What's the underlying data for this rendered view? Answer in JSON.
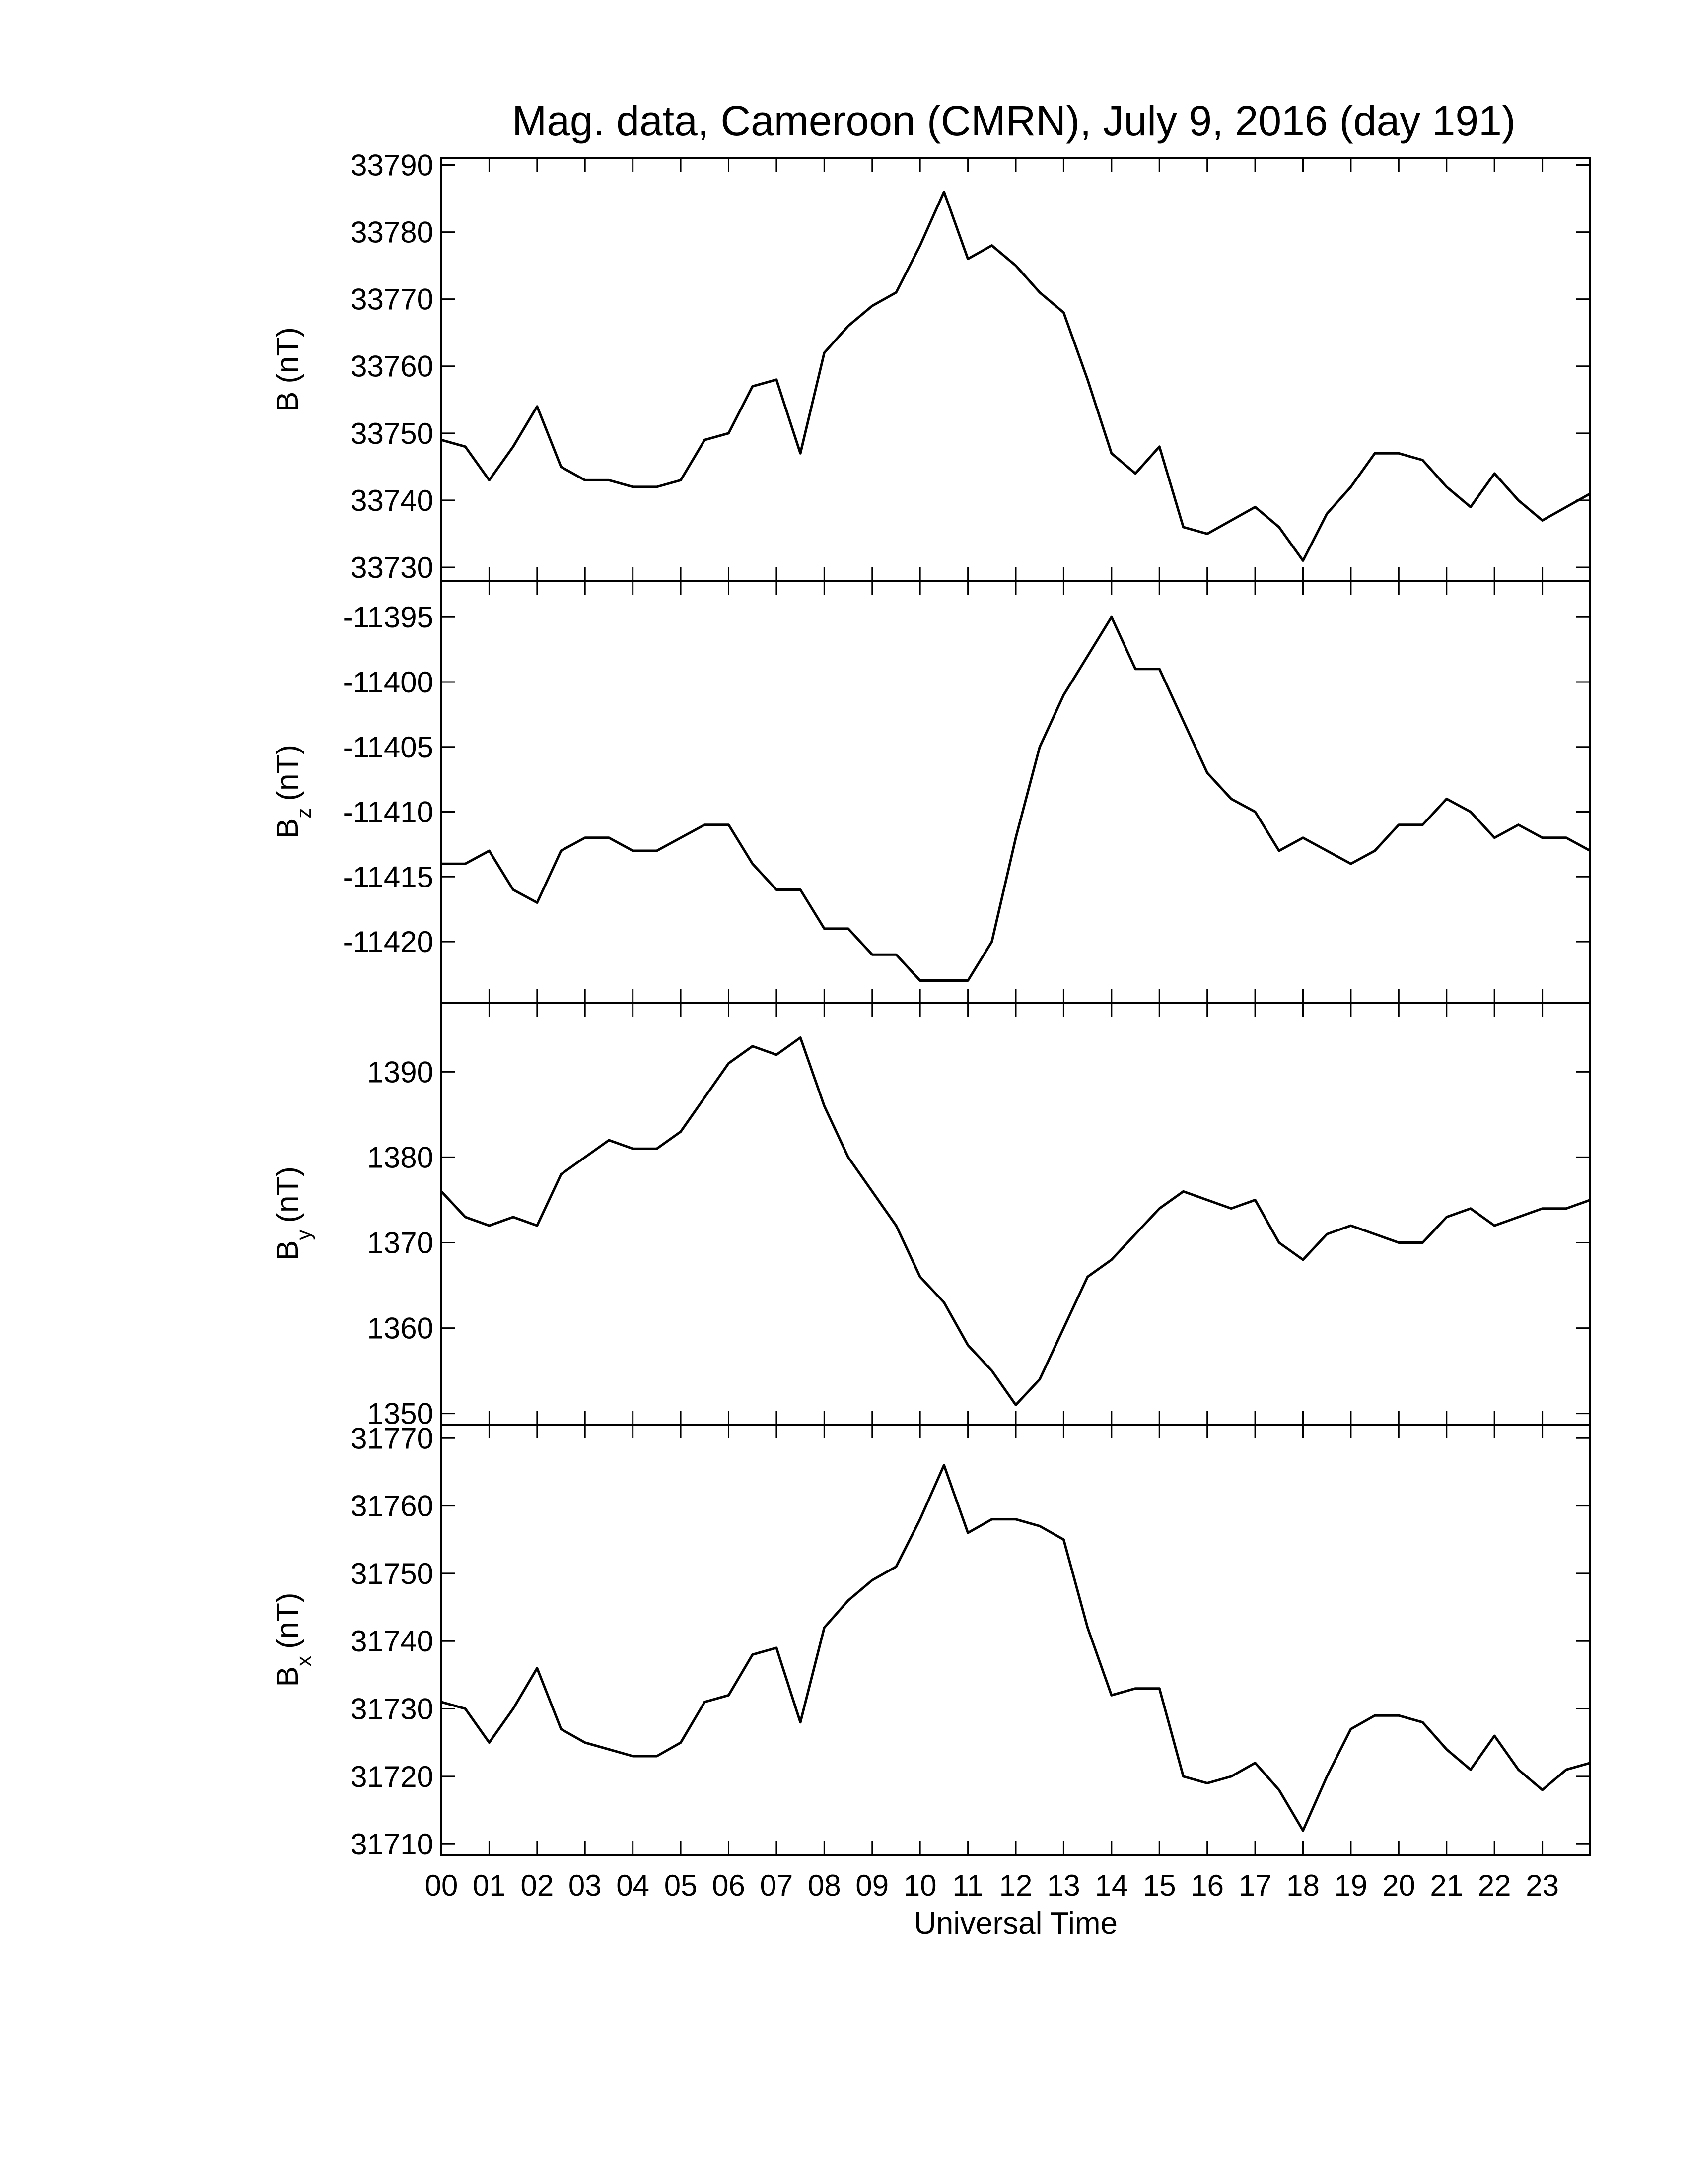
{
  "chart_data": [
    {
      "type": "line",
      "title": "Mag. data, Cameroon (CMRN), July 9, 2016 (day 191)",
      "ylabel": {
        "symbol": "B",
        "unit": "(nT)"
      },
      "x": [
        0,
        0.5,
        1,
        1.5,
        2,
        2.5,
        3,
        3.5,
        4,
        4.5,
        5,
        5.5,
        6,
        6.5,
        7,
        7.5,
        8,
        8.5,
        9,
        9.5,
        10,
        10.5,
        11,
        11.5,
        12,
        12.5,
        13,
        13.5,
        14,
        14.5,
        15,
        15.5,
        16,
        16.5,
        17,
        17.5,
        18,
        18.5,
        19,
        19.5,
        20,
        20.5,
        21,
        21.5,
        22,
        22.5,
        23,
        23.5,
        24
      ],
      "values": [
        33749,
        33748,
        33743,
        33748,
        33754,
        33745,
        33743,
        33743,
        33742,
        33742,
        33743,
        33749,
        33750,
        33757,
        33758,
        33747,
        33762,
        33766,
        33769,
        33771,
        33778,
        33786,
        33776,
        33778,
        33775,
        33771,
        33768,
        33758,
        33747,
        33744,
        33748,
        33736,
        33735,
        33737,
        33739,
        33736,
        33731,
        33738,
        33742,
        33747,
        33747,
        33746,
        33742,
        33739,
        33744,
        33740,
        33737,
        33739,
        33741
      ],
      "color": "#000000",
      "xlim": [
        0,
        24
      ],
      "ylim": [
        33728,
        33791
      ],
      "yticks": [
        33730,
        33740,
        33750,
        33760,
        33770,
        33780,
        33790
      ]
    },
    {
      "type": "line",
      "ylabel": {
        "symbol": "B",
        "subscript": "z",
        "unit": "(nT)"
      },
      "x": [
        0,
        0.5,
        1,
        1.5,
        2,
        2.5,
        3,
        3.5,
        4,
        4.5,
        5,
        5.5,
        6,
        6.5,
        7,
        7.5,
        8,
        8.5,
        9,
        9.5,
        10,
        10.5,
        11,
        11.5,
        12,
        12.5,
        13,
        13.5,
        14,
        14.5,
        15,
        15.5,
        16,
        16.5,
        17,
        17.5,
        18,
        18.5,
        19,
        19.5,
        20,
        20.5,
        21,
        21.5,
        22,
        22.5,
        23,
        23.5,
        24
      ],
      "values": [
        -11414,
        -11414,
        -11413,
        -11416,
        -11417,
        -11413,
        -11412,
        -11412,
        -11413,
        -11413,
        -11412,
        -11411,
        -11411,
        -11414,
        -11416,
        -11416,
        -11419,
        -11419,
        -11421,
        -11421,
        -11423,
        -11423,
        -11423,
        -11420,
        -11412,
        -11405,
        -11401,
        -11398,
        -11395,
        -11399,
        -11399,
        -11403,
        -11407,
        -11409,
        -11410,
        -11413,
        -11412,
        -11413,
        -11414,
        -11413,
        -11411,
        -11411,
        -11409,
        -11410,
        -11412,
        -11411,
        -11412,
        -11412,
        -11413
      ],
      "color": "#000000",
      "xlim": [
        0,
        24
      ],
      "ylim": [
        -11424.7,
        -11392.2
      ],
      "yticks": [
        -11420,
        -11415,
        -11410,
        -11405,
        -11400,
        -11395
      ]
    },
    {
      "type": "line",
      "ylabel": {
        "symbol": "B",
        "subscript": "y",
        "unit": "(nT)"
      },
      "x": [
        0,
        0.5,
        1,
        1.5,
        2,
        2.5,
        3,
        3.5,
        4,
        4.5,
        5,
        5.5,
        6,
        6.5,
        7,
        7.5,
        8,
        8.5,
        9,
        9.5,
        10,
        10.5,
        11,
        11.5,
        12,
        12.5,
        13,
        13.5,
        14,
        14.5,
        15,
        15.5,
        16,
        16.5,
        17,
        17.5,
        18,
        18.5,
        19,
        19.5,
        20,
        20.5,
        21,
        21.5,
        22,
        22.5,
        23,
        23.5,
        24
      ],
      "values": [
        1376,
        1373,
        1372,
        1373,
        1372,
        1378,
        1380,
        1382,
        1381,
        1381,
        1383,
        1387,
        1391,
        1393,
        1392,
        1394,
        1386,
        1380,
        1376,
        1372,
        1366,
        1363,
        1358,
        1355,
        1351,
        1354,
        1360,
        1366,
        1368,
        1371,
        1374,
        1376,
        1375,
        1374,
        1375,
        1370,
        1368,
        1371,
        1372,
        1371,
        1370,
        1370,
        1373,
        1374,
        1372,
        1373,
        1374,
        1374,
        1375
      ],
      "color": "#000000",
      "xlim": [
        0,
        24
      ],
      "ylim": [
        1348.7,
        1398.1
      ],
      "yticks": [
        1350,
        1360,
        1370,
        1380,
        1390
      ]
    },
    {
      "type": "line",
      "xlabel": "Universal Time",
      "ylabel": {
        "symbol": "B",
        "subscript": "x",
        "unit": "(nT)"
      },
      "x": [
        0,
        0.5,
        1,
        1.5,
        2,
        2.5,
        3,
        3.5,
        4,
        4.5,
        5,
        5.5,
        6,
        6.5,
        7,
        7.5,
        8,
        8.5,
        9,
        9.5,
        10,
        10.5,
        11,
        11.5,
        12,
        12.5,
        13,
        13.5,
        14,
        14.5,
        15,
        15.5,
        16,
        16.5,
        17,
        17.5,
        18,
        18.5,
        19,
        19.5,
        20,
        20.5,
        21,
        21.5,
        22,
        22.5,
        23,
        23.5,
        24
      ],
      "values": [
        31731,
        31730,
        31725,
        31730,
        31736,
        31727,
        31725,
        31724,
        31723,
        31723,
        31725,
        31731,
        31732,
        31738,
        31739,
        31728,
        31742,
        31746,
        31749,
        31751,
        31758,
        31766,
        31756,
        31758,
        31758,
        31757,
        31755,
        31742,
        31732,
        31733,
        31733,
        31720,
        31719,
        31720,
        31722,
        31718,
        31712,
        31720,
        31727,
        31729,
        31729,
        31728,
        31724,
        31721,
        31726,
        31721,
        31718,
        31721,
        31722
      ],
      "color": "#000000",
      "xlim": [
        0,
        24
      ],
      "ylim": [
        31708.4,
        31772
      ],
      "yticks": [
        31710,
        31720,
        31730,
        31740,
        31750,
        31760,
        31770
      ],
      "xticks": [
        {
          "value": 0,
          "label": "00"
        },
        {
          "value": 1,
          "label": "01"
        },
        {
          "value": 2,
          "label": "02"
        },
        {
          "value": 3,
          "label": "03"
        },
        {
          "value": 4,
          "label": "04"
        },
        {
          "value": 5,
          "label": "05"
        },
        {
          "value": 6,
          "label": "06"
        },
        {
          "value": 7,
          "label": "07"
        },
        {
          "value": 8,
          "label": "08"
        },
        {
          "value": 9,
          "label": "09"
        },
        10,
        11,
        12,
        13,
        14,
        15,
        16,
        17,
        18,
        19,
        20,
        21,
        22,
        23
      ]
    }
  ]
}
